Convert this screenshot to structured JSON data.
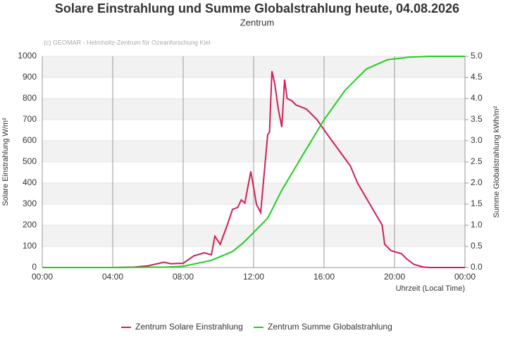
{
  "chart_data": {
    "type": "line",
    "title": "Solare Einstrahlung und Summe Globalstrahlung heute, 04.08.2026",
    "subtitle": "Zentrum",
    "annotation": "(c) GEOMAR - Helmholtz-Zentrum für Ozeanforschung Kiel",
    "x_label": "Uhrzeit (Local Time)",
    "y_label": "Solare Einstrahlung W/m²",
    "y2_label": "Summe Globalstrahlung kWh/m²",
    "xlim": [
      0,
      24
    ],
    "xticks": [
      {
        "value": 0,
        "label": "00:00"
      },
      {
        "value": 4,
        "label": "04:00"
      },
      {
        "value": 8,
        "label": "08:00"
      },
      {
        "value": 12,
        "label": "12:00"
      },
      {
        "value": 16,
        "label": "16:00"
      },
      {
        "value": 20,
        "label": "20:00"
      },
      {
        "value": 24,
        "label": "00:00"
      }
    ],
    "ylim": [
      0,
      1000
    ],
    "yticks": [
      0,
      100,
      200,
      300,
      400,
      500,
      600,
      700,
      800,
      900,
      1000
    ],
    "y2lim": [
      0,
      5
    ],
    "y2ticks": [
      {
        "value": 0,
        "label": "0.0"
      },
      0.5,
      {
        "value": 1,
        "label": "1.0"
      },
      1.5,
      {
        "value": 2,
        "label": "2.0"
      },
      2.5,
      {
        "value": 3,
        "label": "3.0"
      },
      3.5,
      {
        "value": 4,
        "label": "4.0"
      },
      4.5,
      {
        "value": 5,
        "label": "5.0"
      }
    ],
    "grid": true,
    "legend": "bottom",
    "series": [
      {
        "name": "Zentrum Solare Einstrahlung",
        "color": "#cc2255",
        "axis": "y",
        "x": [
          0,
          4,
          5.2,
          6,
          6.9,
          7.3,
          8,
          8.6,
          9.2,
          9.6,
          9.8,
          10.1,
          10.5,
          10.8,
          11.1,
          11.3,
          11.5,
          11.84,
          12.16,
          12.4,
          12.8,
          12.9,
          13.04,
          13.2,
          13.4,
          13.6,
          13.76,
          13.9,
          14.16,
          14.4,
          15,
          15.6,
          16.1,
          16.8,
          17.5,
          17.9,
          18.6,
          19.3,
          19.44,
          19.8,
          20.4,
          20.7,
          21.1,
          21.6,
          22,
          24
        ],
        "values": [
          0,
          0,
          2,
          8,
          25,
          18,
          20,
          55,
          70,
          60,
          148,
          110,
          200,
          275,
          285,
          320,
          305,
          455,
          300,
          260,
          630,
          640,
          930,
          870,
          750,
          665,
          890,
          800,
          790,
          770,
          750,
          700,
          640,
          560,
          480,
          400,
          300,
          200,
          110,
          80,
          65,
          40,
          15,
          3,
          0,
          0
        ]
      },
      {
        "name": "Zentrum Summe Globalstrahlung",
        "color": "#22cc22",
        "axis": "y2",
        "x": [
          0,
          4,
          7,
          8,
          9.6,
          10.8,
          11.4,
          12,
          12.8,
          13.6,
          14.8,
          16,
          17.2,
          18.4,
          19.6,
          20.8,
          22,
          24
        ],
        "values": [
          0,
          0,
          0.01,
          0.03,
          0.17,
          0.38,
          0.58,
          0.83,
          1.17,
          1.83,
          2.67,
          3.5,
          4.2,
          4.7,
          4.92,
          4.98,
          5,
          5
        ]
      }
    ]
  }
}
